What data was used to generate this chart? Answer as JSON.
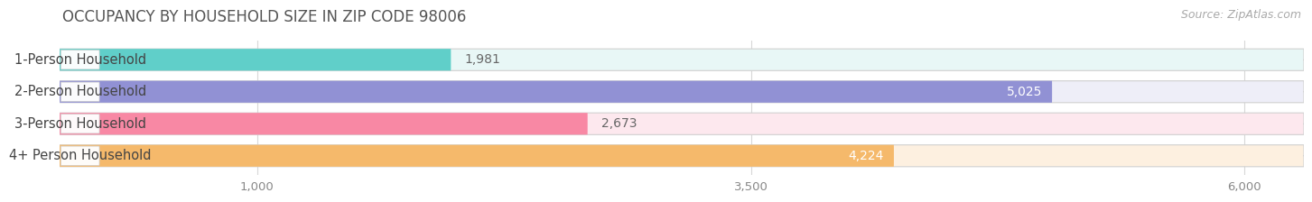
{
  "title": "OCCUPANCY BY HOUSEHOLD SIZE IN ZIP CODE 98006",
  "source": "Source: ZipAtlas.com",
  "categories": [
    "1-Person Household",
    "2-Person Household",
    "3-Person Household",
    "4+ Person Household"
  ],
  "values": [
    1981,
    5025,
    2673,
    4224
  ],
  "bar_colors": [
    "#60cfc9",
    "#9191d4",
    "#f888a4",
    "#f5b96b"
  ],
  "bar_bg_colors": [
    "#e8f7f6",
    "#eeeef8",
    "#fde8ee",
    "#fdf0e0"
  ],
  "x_ticks": [
    1000,
    3500,
    6000
  ],
  "x_min": 0,
  "x_max": 6300,
  "title_fontsize": 12,
  "source_fontsize": 9,
  "bar_label_fontsize": 10,
  "category_fontsize": 10.5,
  "background_color": "#ffffff",
  "grid_color": "#d8d8d8",
  "label_box_border_color": "#cccccc"
}
